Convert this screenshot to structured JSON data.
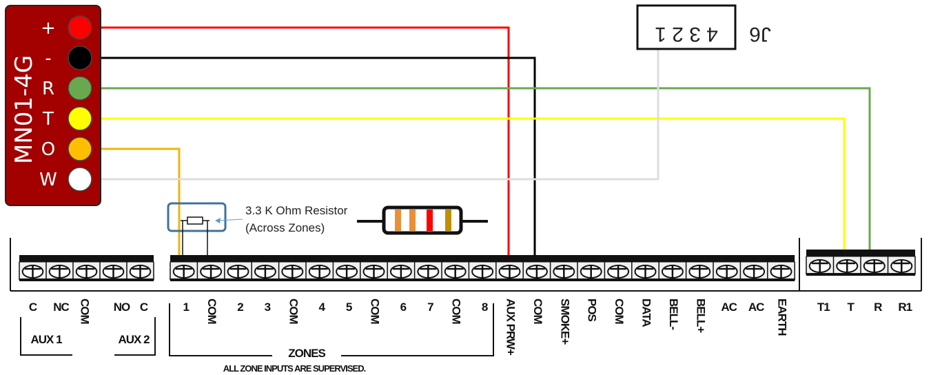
{
  "module": {
    "name": "MN01-4G",
    "pins": [
      {
        "label": "+",
        "color": "#ff0000"
      },
      {
        "label": "-",
        "color": "#000000"
      },
      {
        "label": "R",
        "color": "#6aa84f"
      },
      {
        "label": "T",
        "color": "#ffff00"
      },
      {
        "label": "O",
        "color": "#ffbf00"
      },
      {
        "label": "W",
        "color": "#ffffff"
      }
    ],
    "body_color": "#a30000"
  },
  "j6": {
    "label": "J6",
    "pins_text": "4 3 2 1"
  },
  "resistor": {
    "title": "3.3 K Ohm Resistor",
    "subtitle": "(Across Zones)",
    "band_colors": [
      "#e69138",
      "#e69138",
      "#ff0000",
      "#bf9000"
    ]
  },
  "terminals": {
    "aux1": {
      "labels": [
        "C",
        "NC",
        "COM"
      ],
      "group": "AUX 1"
    },
    "aux2": {
      "labels": [
        "NO",
        "C"
      ],
      "group": "AUX 2"
    },
    "main": [
      "1",
      "COM",
      "2",
      "3",
      "COM",
      "4",
      "5",
      "COM",
      "6",
      "7",
      "COM",
      "8",
      "AUX PRW+",
      "COM",
      "SMOKE+",
      "POS",
      "COM",
      "DATA",
      "BELL-",
      "BELL+",
      "AC",
      "AC",
      "EARTH"
    ],
    "phone": [
      "T1",
      "T",
      "R",
      "R1"
    ],
    "zones_label": "ZONES",
    "zones_note": "ALL ZONE INPUTS ARE SUPERVISED."
  },
  "wire_colors": {
    "red": "#ff0000",
    "black": "#000000",
    "green": "#6aa84f",
    "yellow": "#ffff00",
    "orange": "#f1b30e",
    "white": "#dddddd"
  }
}
